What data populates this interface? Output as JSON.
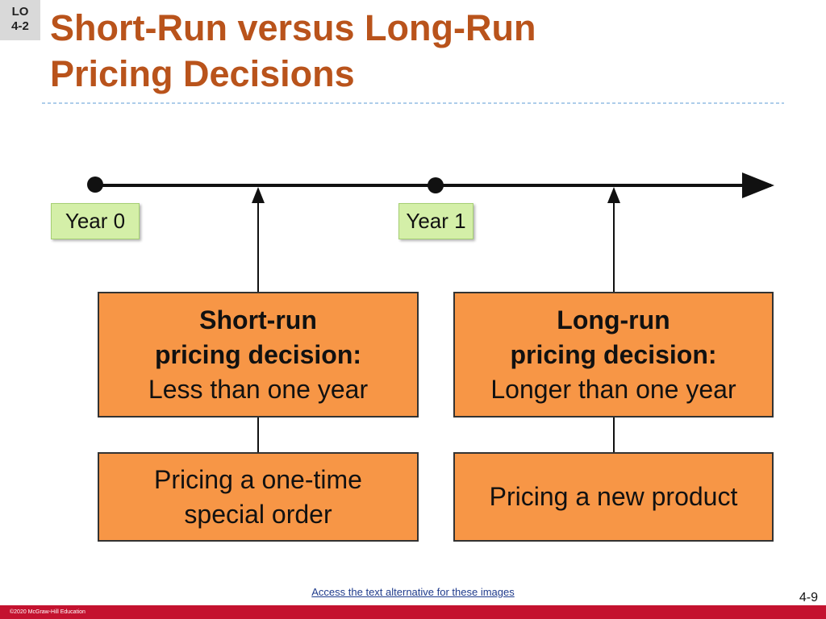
{
  "badge": {
    "lines": [
      "LO",
      "4-2"
    ]
  },
  "header": {
    "title_lines": [
      "Short-Run versus Long-Run",
      "Pricing Decisions"
    ]
  },
  "timeline": {
    "markers": [
      "Year 0",
      "Year 1"
    ]
  },
  "decisions": [
    {
      "heading_lines": [
        "Short-run",
        "pricing decision:"
      ],
      "description": "Less than one year",
      "example_lines": [
        "Pricing a one-time",
        "special order"
      ]
    },
    {
      "heading_lines": [
        "Long-run",
        "pricing decision:"
      ],
      "description": "Longer than one year",
      "example_lines": [
        "Pricing a new product"
      ]
    }
  ],
  "footer": {
    "link": "Access the text alternative for these images",
    "page_number": "4-9",
    "copyright": "©2020 McGraw-Hill Education"
  }
}
